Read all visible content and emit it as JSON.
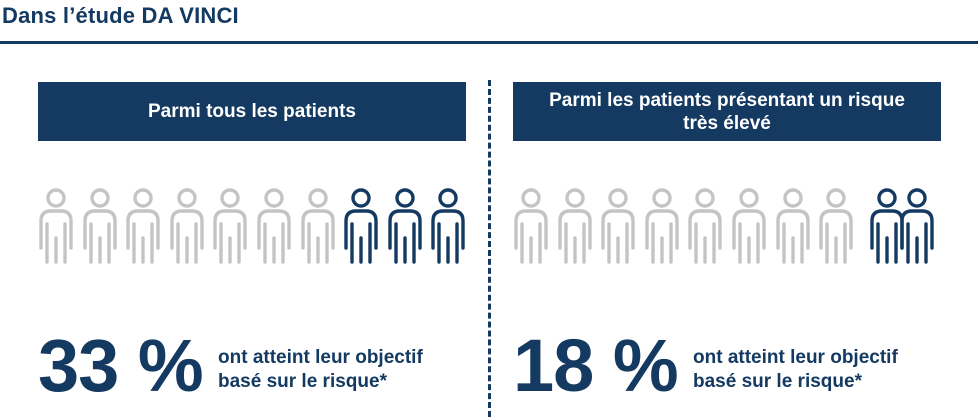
{
  "header": {
    "title": "Dans l’étude DA VINCI"
  },
  "colors": {
    "navy": "#143a62",
    "grey_person": "#c4c4c4",
    "white": "#ffffff"
  },
  "icons": {
    "person": "person-outline-icon"
  },
  "panels": [
    {
      "banner": "Parmi tous les patients",
      "total_people": 10,
      "highlighted_people": 3,
      "percent": "33 %",
      "desc_line1": "ont atteint leur objectif",
      "desc_line2": "basé sur le risque*"
    },
    {
      "banner": "Parmi les patients présentant un risque très élevé",
      "total_people": 10,
      "highlighted_people": 2,
      "percent": "18 %",
      "desc_line1": "ont atteint leur objectif",
      "desc_line2": "basé sur le risque*"
    }
  ]
}
